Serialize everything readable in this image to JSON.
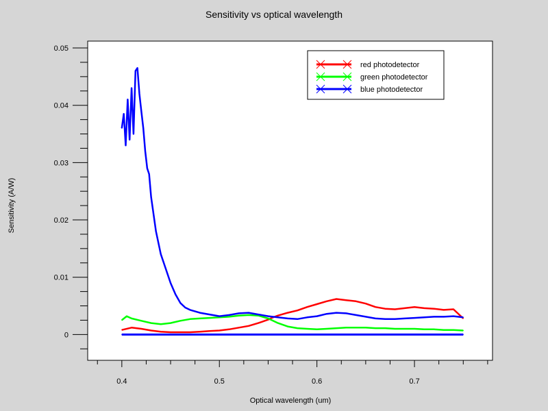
{
  "chart_data": {
    "type": "line",
    "title": "Sensitivity vs optical wavelength",
    "xlabel": "Optical wavelength (um)",
    "ylabel": "Sensitivity (A/W)",
    "xlim": [
      0.365,
      0.78
    ],
    "ylim": [
      -0.0045,
      0.0512
    ],
    "xticks": [
      {
        "value": 0.4,
        "label": "0.4"
      },
      {
        "value": 0.5,
        "label": "0.5"
      },
      {
        "value": 0.6,
        "label": "0.6"
      },
      {
        "value": 0.7,
        "label": "0.7"
      }
    ],
    "yticks": [
      {
        "value": 0,
        "label": "0"
      },
      {
        "value": 0.01,
        "label": "0.01"
      },
      {
        "value": 0.02,
        "label": "0.02"
      },
      {
        "value": 0.03,
        "label": "0.03"
      },
      {
        "value": 0.04,
        "label": "0.04"
      },
      {
        "value": 0.05,
        "label": "0.05"
      }
    ],
    "legend_position": "top-right",
    "grid": false,
    "series": [
      {
        "name": "red photodetector",
        "color": "#ff0000",
        "x": [
          0.4,
          0.41,
          0.42,
          0.43,
          0.44,
          0.45,
          0.46,
          0.47,
          0.48,
          0.49,
          0.5,
          0.51,
          0.52,
          0.53,
          0.54,
          0.55,
          0.555,
          0.56,
          0.57,
          0.58,
          0.59,
          0.6,
          0.61,
          0.62,
          0.63,
          0.64,
          0.65,
          0.66,
          0.67,
          0.68,
          0.69,
          0.7,
          0.71,
          0.72,
          0.73,
          0.74,
          0.75
        ],
        "y": [
          0.0008,
          0.0012,
          0.001,
          0.0007,
          0.0005,
          0.0004,
          0.0004,
          0.0004,
          0.0005,
          0.0006,
          0.0007,
          0.0009,
          0.0012,
          0.0015,
          0.002,
          0.0026,
          0.003,
          0.0033,
          0.0038,
          0.0042,
          0.0048,
          0.0053,
          0.0058,
          0.0062,
          0.006,
          0.0058,
          0.0054,
          0.0048,
          0.0045,
          0.0044,
          0.0046,
          0.0048,
          0.0046,
          0.0045,
          0.0043,
          0.0044,
          0.0028
        ]
      },
      {
        "name": "green photodetector",
        "color": "#00ff00",
        "x": [
          0.4,
          0.405,
          0.41,
          0.42,
          0.43,
          0.44,
          0.45,
          0.46,
          0.47,
          0.48,
          0.49,
          0.5,
          0.51,
          0.52,
          0.53,
          0.54,
          0.55,
          0.56,
          0.57,
          0.58,
          0.59,
          0.6,
          0.61,
          0.62,
          0.63,
          0.64,
          0.65,
          0.66,
          0.67,
          0.68,
          0.69,
          0.7,
          0.71,
          0.72,
          0.73,
          0.74,
          0.75
        ],
        "y": [
          0.0025,
          0.0032,
          0.0028,
          0.0024,
          0.002,
          0.0018,
          0.002,
          0.0024,
          0.0027,
          0.0028,
          0.0029,
          0.003,
          0.0031,
          0.0033,
          0.0034,
          0.0033,
          0.0028,
          0.002,
          0.0014,
          0.0011,
          0.001,
          0.0009,
          0.001,
          0.0011,
          0.0012,
          0.0012,
          0.0012,
          0.0011,
          0.0011,
          0.001,
          0.001,
          0.001,
          0.0009,
          0.0009,
          0.0008,
          0.0008,
          0.0007
        ]
      },
      {
        "name": "blue photodetector",
        "color": "#0000ff",
        "x": [
          0.4,
          0.402,
          0.404,
          0.406,
          0.408,
          0.41,
          0.412,
          0.414,
          0.416,
          0.418,
          0.42,
          0.422,
          0.424,
          0.426,
          0.428,
          0.43,
          0.435,
          0.44,
          0.445,
          0.45,
          0.455,
          0.46,
          0.465,
          0.47,
          0.48,
          0.49,
          0.5,
          0.51,
          0.52,
          0.53,
          0.54,
          0.55,
          0.56,
          0.57,
          0.58,
          0.59,
          0.6,
          0.61,
          0.62,
          0.63,
          0.64,
          0.65,
          0.66,
          0.67,
          0.68,
          0.69,
          0.7,
          0.71,
          0.72,
          0.73,
          0.74,
          0.75
        ],
        "y": [
          0.036,
          0.0385,
          0.033,
          0.041,
          0.034,
          0.043,
          0.035,
          0.046,
          0.0465,
          0.042,
          0.039,
          0.036,
          0.032,
          0.029,
          0.028,
          0.024,
          0.018,
          0.014,
          0.0115,
          0.009,
          0.007,
          0.0055,
          0.0047,
          0.0043,
          0.0038,
          0.0035,
          0.0032,
          0.0034,
          0.0037,
          0.0038,
          0.0035,
          0.0032,
          0.003,
          0.0028,
          0.0027,
          0.003,
          0.0032,
          0.0036,
          0.0038,
          0.0037,
          0.0034,
          0.0031,
          0.0028,
          0.0027,
          0.0027,
          0.0028,
          0.0029,
          0.003,
          0.0031,
          0.0031,
          0.0032,
          0.003
        ]
      },
      {
        "name": "",
        "color": "#0000ff",
        "x": [
          0.4,
          0.75
        ],
        "y": [
          0.0,
          0.0
        ]
      }
    ]
  }
}
